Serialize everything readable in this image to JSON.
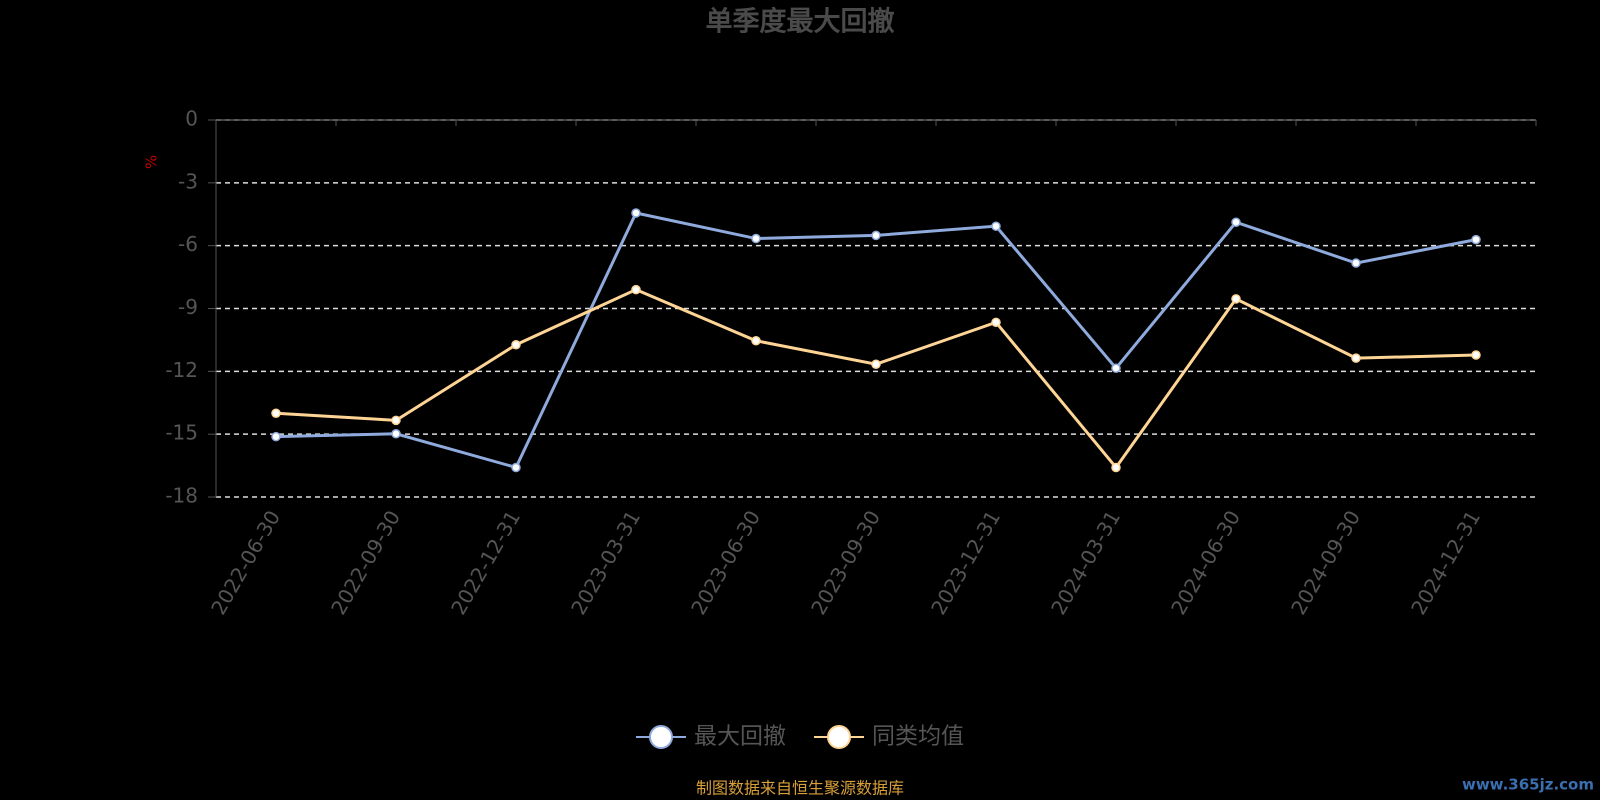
{
  "chart_data": {
    "type": "line",
    "title": "单季度最大回撤",
    "y_label": "%",
    "categories": [
      "2022-06-30",
      "2022-09-30",
      "2022-12-31",
      "2023-03-31",
      "2023-06-30",
      "2023-09-30",
      "2023-12-31",
      "2024-03-31",
      "2024-06-30",
      "2024-09-30",
      "2024-12-31"
    ],
    "series": [
      {
        "name": "最大回撤",
        "color": "#8faadc",
        "values": [
          -15.12,
          -14.98,
          -16.59,
          -4.44,
          -5.66,
          -5.51,
          -5.07,
          -11.85,
          -4.88,
          -6.83,
          -5.71
        ]
      },
      {
        "name": "同类均值",
        "color": "#ffd596",
        "values": [
          -14.0,
          -14.34,
          -10.73,
          -8.1,
          -10.54,
          -11.66,
          -9.66,
          -16.59,
          -8.54,
          -11.37,
          -11.22
        ]
      }
    ],
    "ylim": [
      -18,
      0
    ],
    "yticks": [
      0,
      -3,
      -6,
      -9,
      -12,
      -15,
      -18
    ],
    "grid": true,
    "source": "制图数据来自恒生聚源数据库",
    "watermark": "www.365jz.com"
  }
}
